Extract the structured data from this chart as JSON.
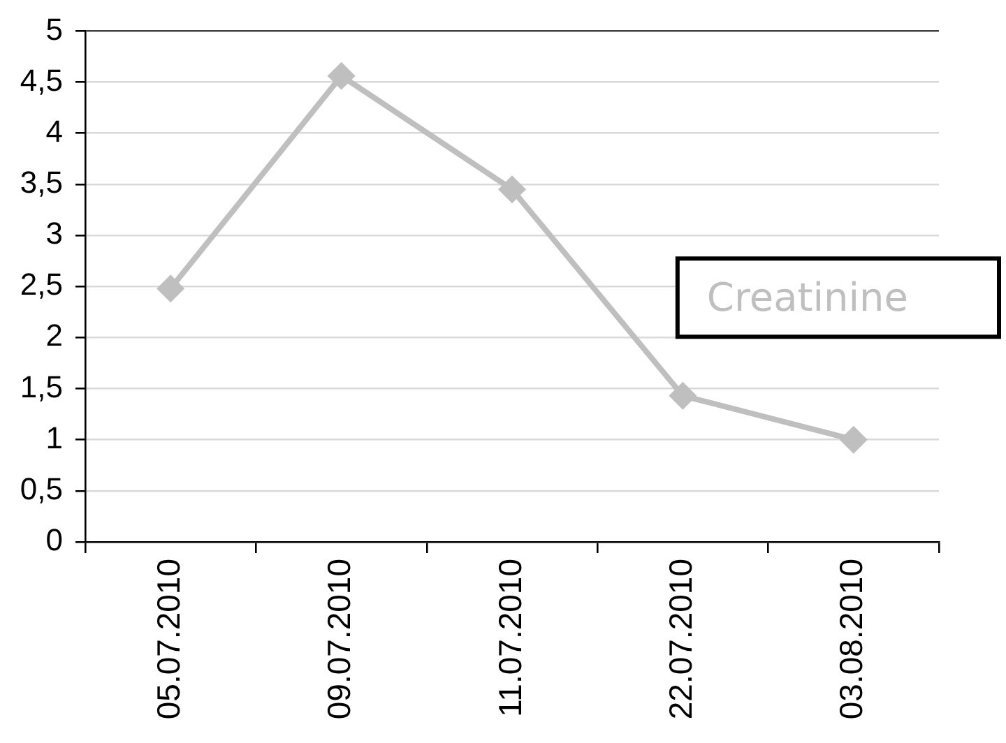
{
  "chart_data": {
    "type": "line",
    "categories": [
      "05.07.2010",
      "09.07.2010",
      "11.07.2010",
      "22.07.2010",
      "03.08.2010"
    ],
    "series": [
      {
        "name": "Creatinine",
        "color": "#bfbfbf",
        "values": [
          2.48,
          4.56,
          3.45,
          1.43,
          1.0
        ]
      }
    ],
    "ylim": [
      0,
      5
    ],
    "yticks": [
      0,
      {
        "value": 0.5,
        "label": "0,5"
      },
      1,
      {
        "value": 1.5,
        "label": "1,5"
      },
      2,
      {
        "value": 2.5,
        "label": "2,5"
      },
      3,
      {
        "value": 3.5,
        "label": "3,5"
      },
      4,
      {
        "value": 4.5,
        "label": "4,5"
      },
      5
    ],
    "grid": "y",
    "legend": "right",
    "marker": "diamond",
    "line_style": "solid"
  }
}
